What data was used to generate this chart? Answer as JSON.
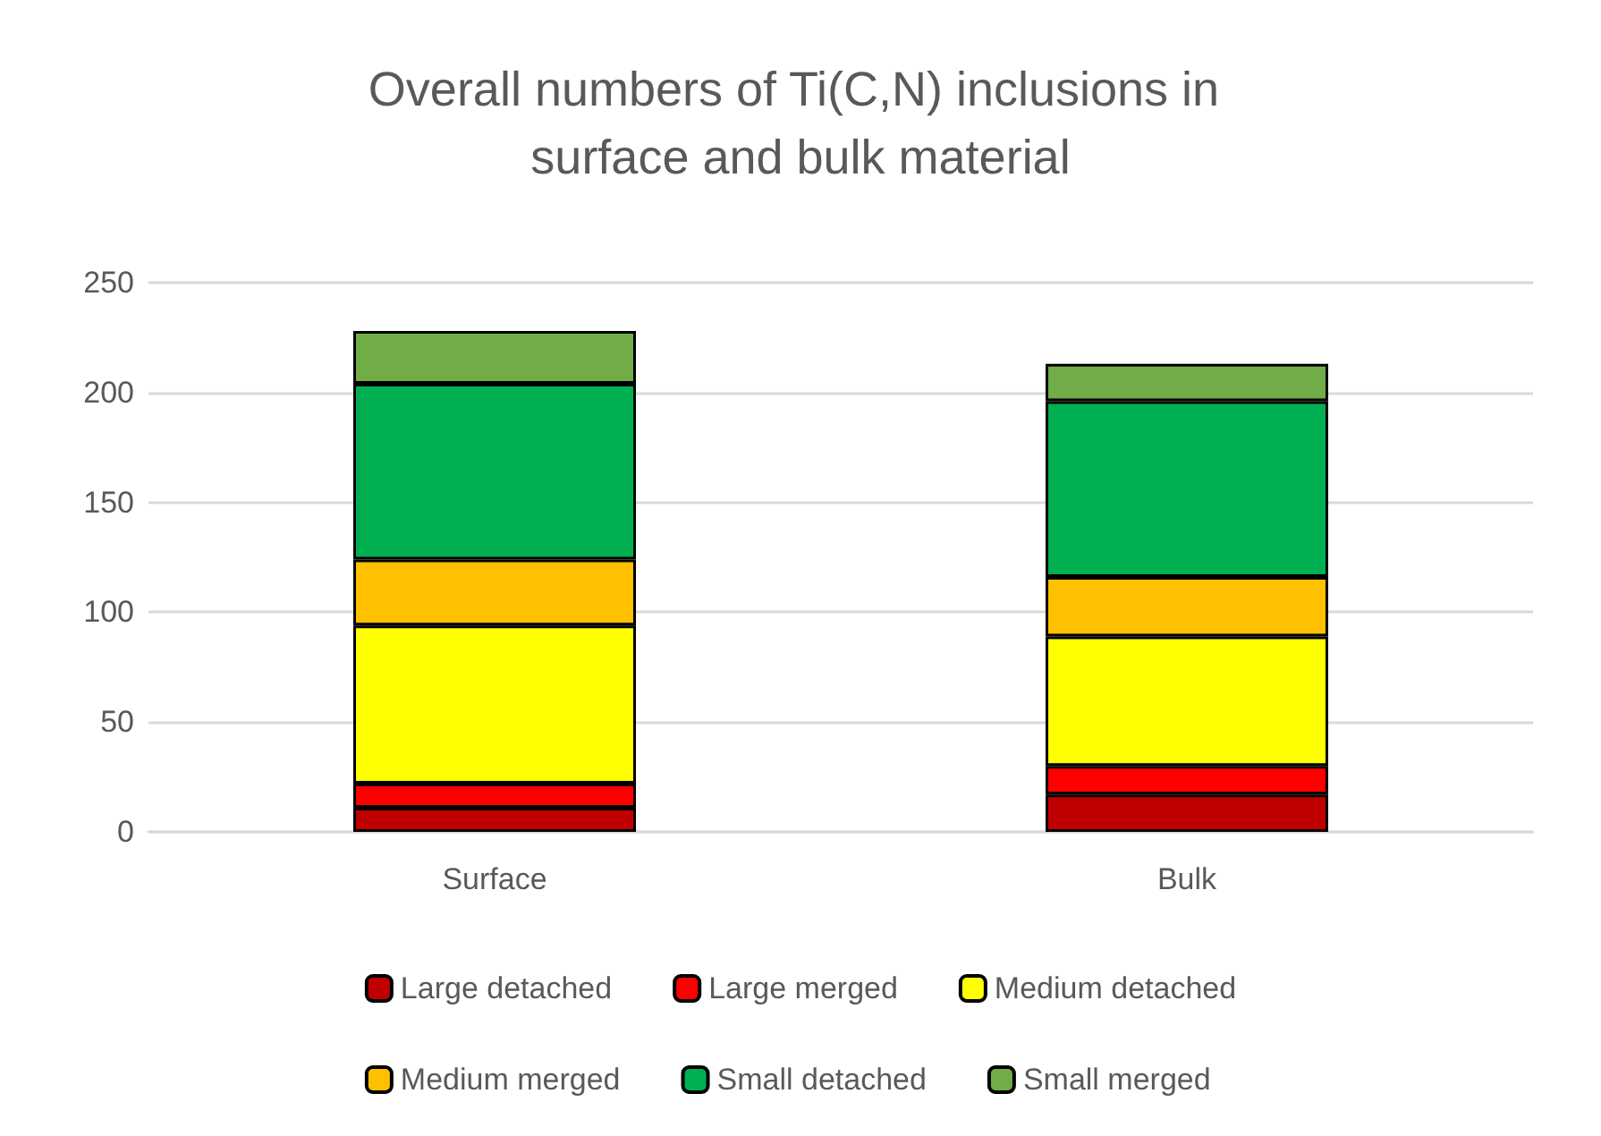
{
  "chart_data": {
    "type": "bar",
    "title": "Overall numbers of Ti(C,N) inclusions in surface and bulk material",
    "categories": [
      "Surface",
      "Bulk"
    ],
    "stacked": true,
    "ylim": [
      0,
      250
    ],
    "yticks": [
      0,
      50,
      100,
      150,
      200,
      250
    ],
    "grid": "y",
    "legend": "bottom",
    "series": [
      {
        "name": "Large detached",
        "color": "#c00000",
        "values": [
          11,
          17
        ]
      },
      {
        "name": "Large merged",
        "color": "#ff0000",
        "values": [
          11,
          13
        ]
      },
      {
        "name": "Medium detached",
        "color": "#ffff00",
        "values": [
          72,
          59
        ]
      },
      {
        "name": "Medium merged",
        "color": "#ffc000",
        "values": [
          30,
          27
        ]
      },
      {
        "name": "Small detached",
        "color": "#00b050",
        "values": [
          80,
          80
        ]
      },
      {
        "name": "Small merged",
        "color": "#70ad47",
        "values": [
          24,
          17
        ]
      }
    ]
  }
}
